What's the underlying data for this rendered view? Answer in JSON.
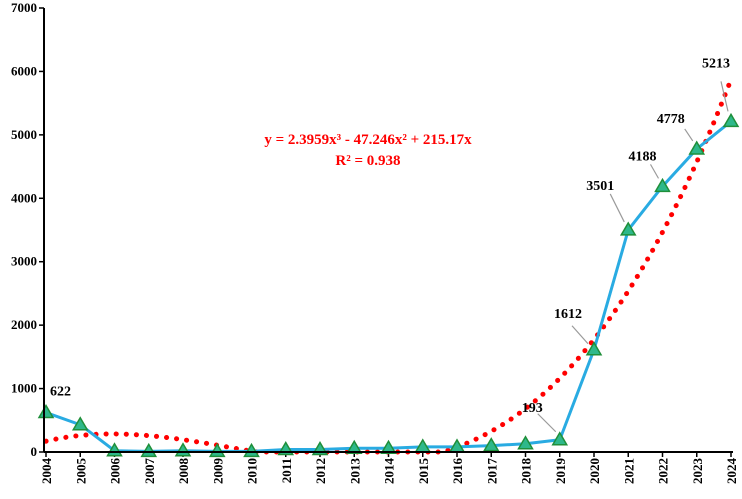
{
  "chart_data": {
    "type": "line",
    "title": "",
    "xlabel": "",
    "ylabel": "",
    "categories": [
      "2004",
      "2005",
      "2006",
      "2007",
      "2008",
      "2009",
      "2010",
      "2011",
      "2012",
      "2013",
      "2014",
      "2015",
      "2016",
      "2017",
      "2018",
      "2019",
      "2020",
      "2021",
      "2022",
      "2023",
      "2024"
    ],
    "series": [
      {
        "values": [
          622,
          430,
          20,
          10,
          20,
          10,
          10,
          40,
          40,
          60,
          60,
          80,
          80,
          100,
          130,
          193,
          1612,
          3501,
          4188,
          4778,
          5213
        ],
        "color": "#29abe2",
        "marker": "triangle",
        "marker_fill": "#2eb88a",
        "marker_stroke": "#1f8f3a"
      }
    ],
    "trendline": {
      "type": "polynomial",
      "order": 3,
      "color": "#ff0000",
      "style": "dotted",
      "coefficients": {
        "a3": 2.3959,
        "a2": -47.246,
        "a1": 215.17
      },
      "equation": "y = 2.3959x³ - 47.246x² + 215.17x",
      "r_squared": "R² = 0.938"
    },
    "data_labels": [
      {
        "index": 0,
        "text": "622"
      },
      {
        "index": 15,
        "text": "193"
      },
      {
        "index": 16,
        "text": "1612"
      },
      {
        "index": 17,
        "text": "3501"
      },
      {
        "index": 18,
        "text": "4188"
      },
      {
        "index": 19,
        "text": "4778"
      },
      {
        "index": 20,
        "text": "5213"
      }
    ],
    "yticks": [
      "0",
      "1000",
      "2000",
      "3000",
      "4000",
      "5000",
      "6000",
      "7000"
    ],
    "ylim": [
      0,
      7000
    ],
    "grid": false,
    "legend": "none"
  }
}
